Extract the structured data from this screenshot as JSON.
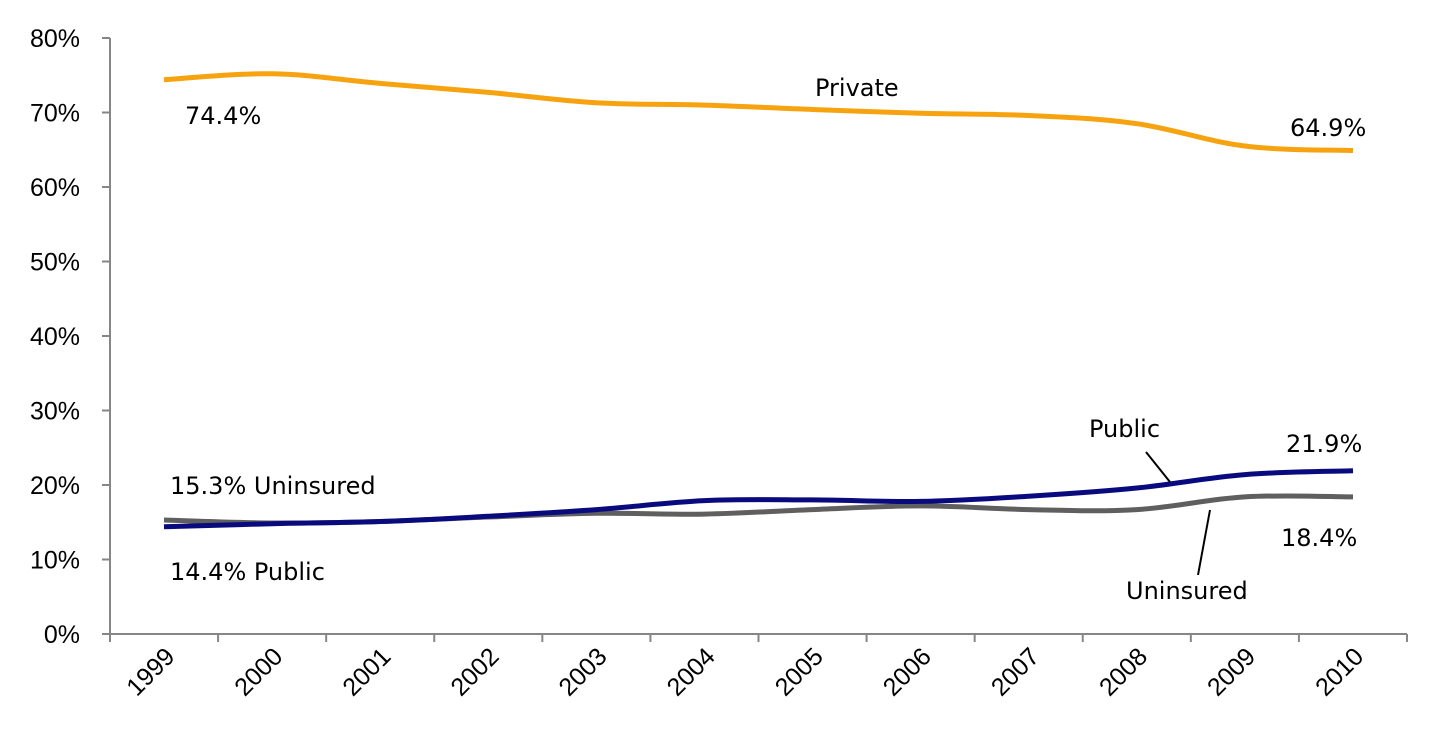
{
  "chart_data": {
    "type": "line",
    "title": "",
    "xlabel": "",
    "ylabel": "",
    "x": [
      "1999",
      "2000",
      "2001",
      "2002",
      "2003",
      "2004",
      "2005",
      "2006",
      "2007",
      "2008",
      "2009",
      "2010"
    ],
    "y_ticks": [
      "0%",
      "10%",
      "20%",
      "30%",
      "40%",
      "50%",
      "60%",
      "70%",
      "80%"
    ],
    "ylim": [
      0,
      80
    ],
    "grid": false,
    "legend": "none",
    "series": [
      {
        "key": "private",
        "name": "Private",
        "color": "#F7A30F",
        "values": [
          74.4,
          75.2,
          73.9,
          72.7,
          71.3,
          71.0,
          70.4,
          69.9,
          69.6,
          68.5,
          65.5,
          64.9
        ]
      },
      {
        "key": "public",
        "name": "Public",
        "color": "#0A0A7F",
        "values": [
          14.4,
          14.8,
          15.1,
          15.8,
          16.7,
          17.9,
          18.0,
          17.8,
          18.5,
          19.6,
          21.4,
          21.9
        ]
      },
      {
        "key": "uninsured",
        "name": "Uninsured",
        "color": "#5F5F5F",
        "values": [
          15.3,
          14.9,
          15.1,
          15.7,
          16.2,
          16.1,
          16.7,
          17.2,
          16.7,
          16.7,
          18.4,
          18.4
        ]
      }
    ],
    "annotations": {
      "private_start": "74.4%",
      "private_label": "Private",
      "private_end": "64.9%",
      "uninsured_start": "15.3% Uninsured",
      "public_start": "14.4% Public",
      "public_label": "Public",
      "public_end": "21.9%",
      "uninsured_end": "18.4%",
      "uninsured_label": "Uninsured"
    }
  }
}
